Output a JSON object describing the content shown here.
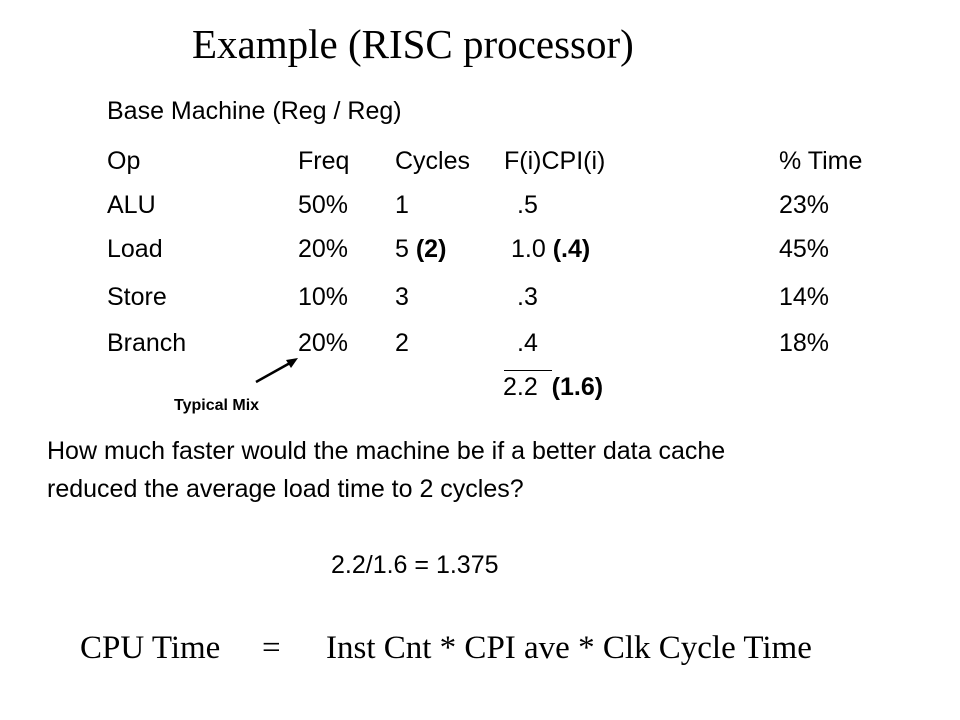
{
  "slide": {
    "title": "Example (RISC processor)",
    "subtitle": "Base Machine (Reg / Reg)",
    "table": {
      "headers": [
        "Op",
        "Freq",
        "Cycles",
        "F(i)CPI(i)",
        "% Time"
      ],
      "rows": [
        {
          "op": "ALU",
          "freq": "50%",
          "cycles": "1",
          "cycles_alt": "",
          "fcpi": ".5",
          "fcpi_alt": "",
          "time": "23%"
        },
        {
          "op": "Load",
          "freq": "20%",
          "cycles": "5",
          "cycles_alt": "(2)",
          "fcpi": "1.0",
          "fcpi_alt": "(.4)",
          "time": "45%"
        },
        {
          "op": "Store",
          "freq": "10%",
          "cycles": "3",
          "cycles_alt": "",
          "fcpi": ".3",
          "fcpi_alt": "",
          "time": "14%"
        },
        {
          "op": "Branch",
          "freq": "20%",
          "cycles": "2",
          "cycles_alt": "",
          "fcpi": ".4",
          "fcpi_alt": "",
          "time": "18%"
        }
      ],
      "total": "2.2",
      "total_alt": "(1.6)"
    },
    "annotation": "Typical Mix",
    "question_line1": "How much faster would the machine be if a better data cache",
    "question_line2": "reduced the average load time to 2 cycles?",
    "answer": "2.2/1.6 = 1.375",
    "formula": {
      "lhs": "CPU Time",
      "eq": "=",
      "rhs": "Inst Cnt * CPI ave * Clk Cycle Time"
    }
  }
}
